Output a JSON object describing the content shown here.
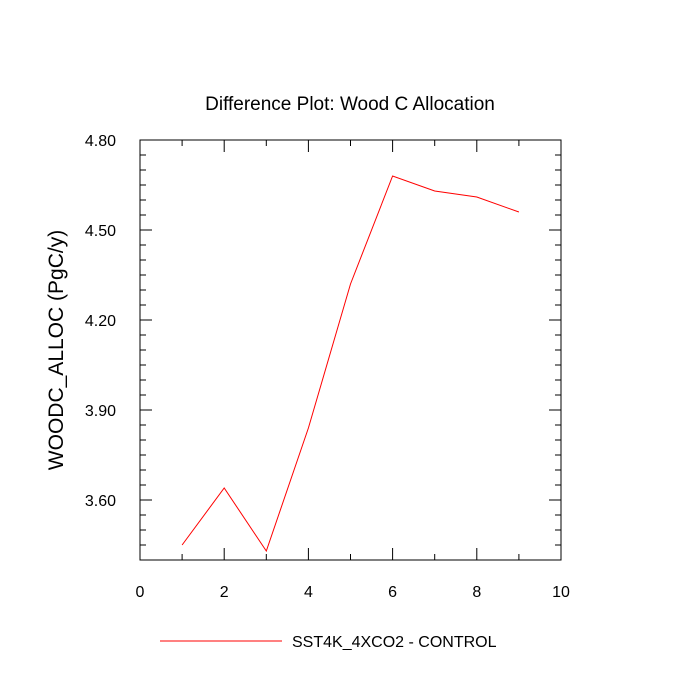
{
  "chart_data": {
    "type": "line",
    "title": "Difference Plot: Wood C Allocation",
    "xlabel": "",
    "ylabel": "WOODC_ALLOC  (PgC/y)",
    "xlim": [
      0,
      10
    ],
    "ylim": [
      3.4,
      4.8
    ],
    "x_ticks": [
      0,
      2,
      4,
      6,
      8,
      10
    ],
    "x_tick_labels": [
      "0",
      "2",
      "4",
      "6",
      "8",
      "10"
    ],
    "x_minor_step": 1,
    "y_ticks": [
      3.6,
      3.9,
      4.2,
      4.5,
      4.8
    ],
    "y_tick_labels": [
      "3.60",
      "3.90",
      "4.20",
      "4.50",
      "4.80"
    ],
    "y_minor_step": 0.05,
    "grid": false,
    "legend_position": "bottom-center",
    "series": [
      {
        "name": "SST4K_4XCO2 - CONTROL",
        "color": "#ff0000",
        "x": [
          1,
          2,
          3,
          4,
          5,
          6,
          7,
          8,
          9
        ],
        "values": [
          3.45,
          3.64,
          3.43,
          3.84,
          4.32,
          4.68,
          4.63,
          4.61,
          4.56
        ]
      }
    ]
  }
}
